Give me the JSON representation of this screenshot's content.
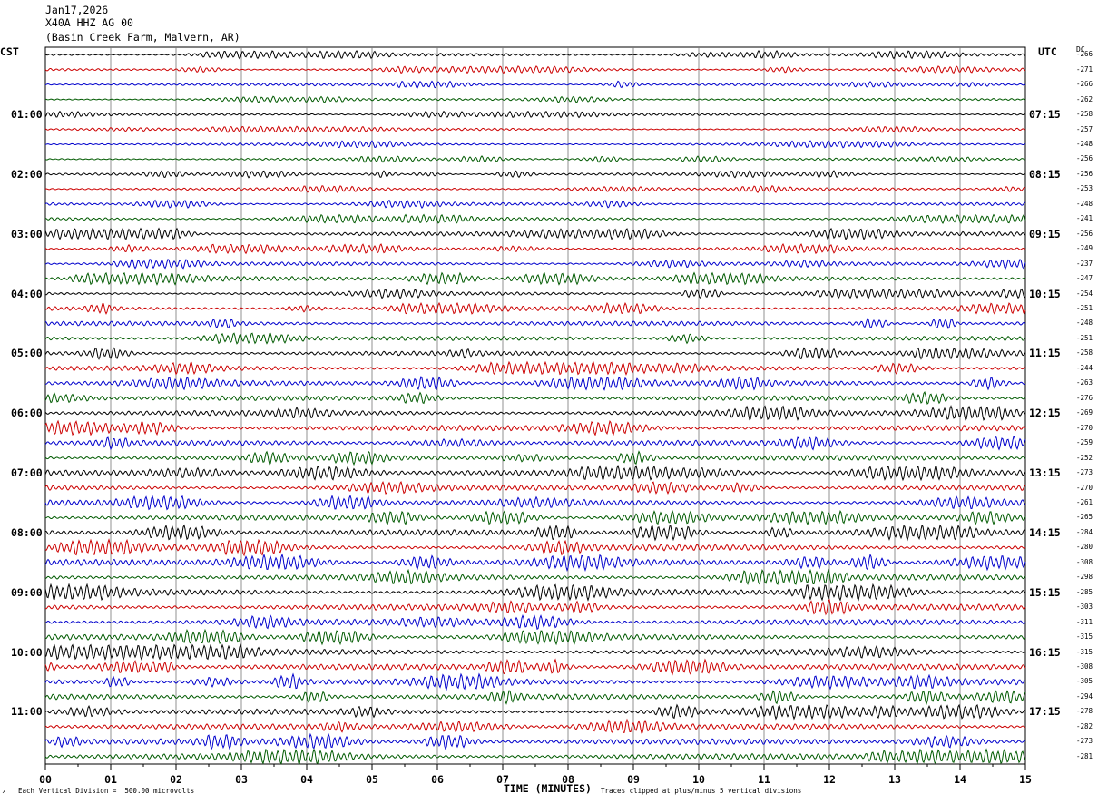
{
  "header": {
    "date": "Jan17,2026",
    "station": "X40A HHZ AG 00",
    "location": "(Basin Creek Farm, Malvern, AR)"
  },
  "left_tz": "CST",
  "right_tz": "UTC",
  "dc_label": "DC",
  "xlabel": "TIME (MINUTES)",
  "footer": {
    "scale": "Each Vertical Division =  500.00 microvolts",
    "clip": "Traces clipped at plus/minus 5 vertical divisions"
  },
  "colors": {
    "black": "#000000",
    "red": "#cc0000",
    "blue": "#0000cc",
    "green": "#005a00",
    "grid": "#777777"
  },
  "chart_data": {
    "type": "line",
    "title": "X40A HHZ AG 00",
    "xlabel": "TIME (MINUTES)",
    "xlim": [
      0,
      15
    ],
    "x_ticks": [
      "00",
      "01",
      "02",
      "03",
      "04",
      "05",
      "06",
      "07",
      "08",
      "09",
      "10",
      "11",
      "12",
      "13",
      "14",
      "15"
    ],
    "rows": 48,
    "row_colors": [
      "black",
      "red",
      "blue",
      "green"
    ],
    "left_hour_labels": [
      {
        "row": 4,
        "label": "01:00"
      },
      {
        "row": 8,
        "label": "02:00"
      },
      {
        "row": 12,
        "label": "03:00"
      },
      {
        "row": 16,
        "label": "04:00"
      },
      {
        "row": 20,
        "label": "05:00"
      },
      {
        "row": 24,
        "label": "06:00"
      },
      {
        "row": 28,
        "label": "07:00"
      },
      {
        "row": 32,
        "label": "08:00"
      },
      {
        "row": 36,
        "label": "09:00"
      },
      {
        "row": 40,
        "label": "10:00"
      },
      {
        "row": 44,
        "label": "11:00"
      }
    ],
    "right_hour_labels": [
      {
        "row": 4,
        "label": "07:15"
      },
      {
        "row": 8,
        "label": "08:15"
      },
      {
        "row": 12,
        "label": "09:15"
      },
      {
        "row": 16,
        "label": "10:15"
      },
      {
        "row": 20,
        "label": "11:15"
      },
      {
        "row": 24,
        "label": "12:15"
      },
      {
        "row": 28,
        "label": "13:15"
      },
      {
        "row": 32,
        "label": "14:15"
      },
      {
        "row": 36,
        "label": "15:15"
      },
      {
        "row": 40,
        "label": "16:15"
      },
      {
        "row": 44,
        "label": "17:15"
      }
    ],
    "dc_offsets": [
      "-266",
      "-271",
      "-266",
      "-262",
      "-258",
      "-257",
      "-248",
      "-256",
      "-256",
      "-253",
      "-248",
      "-241",
      "-256",
      "-249",
      "-237",
      "-247",
      "-254",
      "-251",
      "-248",
      "-251",
      "-258",
      "-244",
      "-263",
      "-276",
      "-269",
      "-270",
      "-259",
      "-252",
      "-273",
      "-270",
      "-261",
      "-265",
      "-284",
      "-280",
      "-308",
      "-298",
      "-285",
      "-303",
      "-311",
      "-315",
      "-315",
      "-308",
      "-305",
      "-294",
      "-278",
      "-282",
      "-273",
      "-281"
    ],
    "row_amplitude": [
      0.5,
      0.45,
      0.45,
      0.4,
      0.4,
      0.4,
      0.45,
      0.4,
      0.45,
      0.45,
      0.5,
      0.55,
      0.7,
      0.6,
      0.6,
      0.75,
      0.6,
      0.7,
      0.75,
      0.7,
      0.75,
      0.8,
      0.85,
      0.8,
      0.9,
      0.9,
      0.85,
      0.85,
      0.9,
      0.85,
      0.9,
      0.85,
      0.95,
      1.0,
      1.0,
      0.95,
      1.0,
      1.0,
      0.95,
      0.9,
      0.95,
      0.95,
      1.0,
      0.9,
      0.9,
      0.9,
      0.95,
      0.95
    ]
  }
}
